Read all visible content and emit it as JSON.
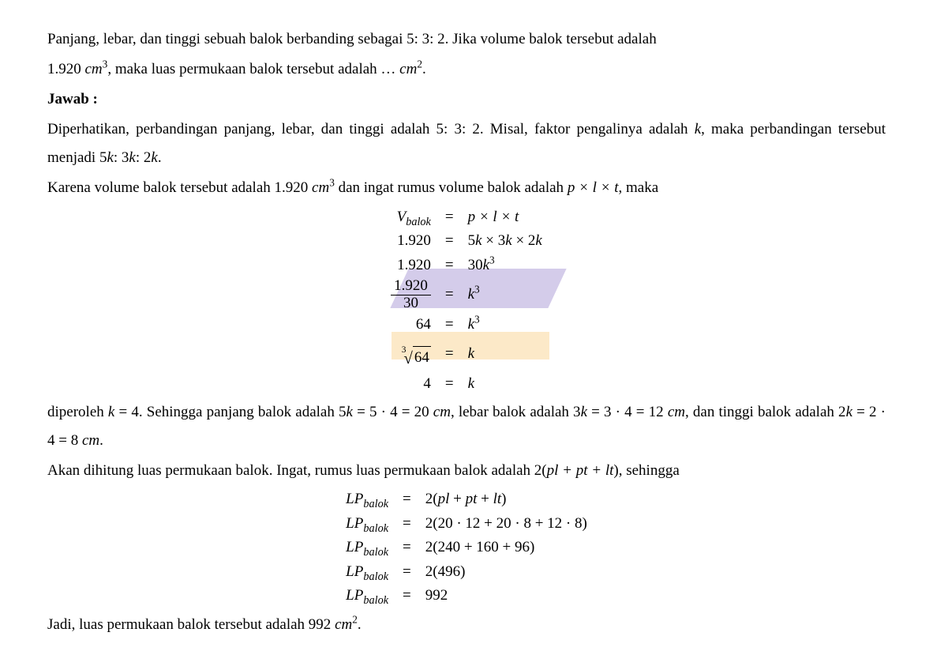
{
  "question": {
    "part1": "Panjang, lebar, dan tinggi sebuah balok berbanding sebagai 5: 3: 2. Jika volume balok tersebut adalah",
    "part2_pre": "1.920 ",
    "part2_unit": "cm",
    "part2_exp": "3",
    "part2_mid": ", maka luas permukaan balok tersebut adalah … ",
    "part2_unit2": "cm",
    "part2_exp2": "2",
    "part2_end": "."
  },
  "answer_label": "Jawab :",
  "para1": {
    "part1": "Diperhatikan, perbandingan panjang, lebar, dan tinggi adalah 5: 3: 2. Misal, faktor pengalinya adalah ",
    "var1": "k",
    "part2": ", maka perbandingan tersebut menjadi 5",
    "var2": "k",
    "part3": ": 3",
    "var3": "k",
    "part4": ": 2",
    "var4": "k",
    "part5": "."
  },
  "para2": {
    "part1": "Karena volume balok tersebut adalah 1.920 ",
    "unit": "cm",
    "exp": "3",
    "part2": " dan ingat rumus volume balok adalah ",
    "formula": "p × l × t",
    "part3": ", maka"
  },
  "eq1": {
    "r1": {
      "l": "V",
      "lsub": "balok",
      "c": "=",
      "r": "p × l × t"
    },
    "r2": {
      "l": "1.920",
      "c": "=",
      "r": "5k × 3k × 2k"
    },
    "r3": {
      "l": "1.920",
      "c": "=",
      "r_pre": "30",
      "r_var": "k",
      "r_exp": "3"
    },
    "r4": {
      "num": "1.920",
      "den": "30",
      "c": "=",
      "r_var": "k",
      "r_exp": "3"
    },
    "r5": {
      "l": "64",
      "c": "=",
      "r_var": "k",
      "r_exp": "3"
    },
    "r6": {
      "root": "3",
      "radicand": "64",
      "c": "=",
      "r": "k"
    },
    "r7": {
      "l": "4",
      "c": "=",
      "r": "k"
    }
  },
  "para3": {
    "part1": "diperoleh ",
    "var1": "k",
    "part2": " = 4. Sehingga panjang balok adalah 5",
    "var2": "k",
    "part3": " = 5 · 4 = 20 ",
    "unit1": "cm",
    "part4": ", lebar balok adalah 3",
    "var3": "k",
    "part5": " = 3 · 4 = 12 ",
    "unit2": "cm",
    "part6": ", dan tinggi balok adalah 2",
    "var4": "k",
    "part7": " = 2 · 4 = 8 ",
    "unit3": "cm",
    "part8": "."
  },
  "para4": {
    "part1": "Akan dihitung luas permukaan balok. Ingat, rumus luas permukaan balok adalah 2(",
    "formula": "pl + pt + lt",
    "part2": "), sehingga"
  },
  "eq2": {
    "lhs": "LP",
    "lhs_sub": "balok",
    "r1": "2(pl + pt + lt)",
    "r2": "2(20 · 12 + 20 · 8 + 12 · 8)",
    "r3": "2(240 + 160 + 96)",
    "r4": "2(496)",
    "r5": "992",
    "eq": "="
  },
  "conclusion": {
    "part1": "Jadi, luas permukaan balok tersebut adalah 992 ",
    "unit": "cm",
    "exp": "2",
    "part2": "."
  },
  "styles": {
    "background": "#ffffff",
    "text_color": "#000000",
    "font_size": 19,
    "watermark_purple": "#d4ccea",
    "watermark_orange": "#fce9c8"
  }
}
